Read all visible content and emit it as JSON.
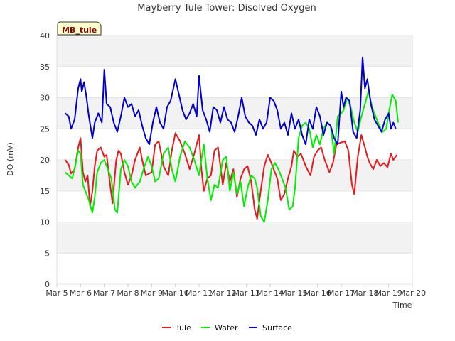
{
  "chart_data": {
    "type": "line",
    "title": "Mayberry Tule Tower: Disolved Oxygen",
    "xlabel": "Time",
    "ylabel": "DO (mV)",
    "badge": "MB_tule",
    "ylim": [
      0,
      40
    ],
    "yticks": [
      0,
      5,
      10,
      15,
      20,
      25,
      30,
      35,
      40
    ],
    "xlim": [
      5,
      20
    ],
    "xticks": [
      {
        "v": 5,
        "label": "Mar 5"
      },
      {
        "v": 6,
        "label": "Mar 6"
      },
      {
        "v": 7,
        "label": "Mar 7"
      },
      {
        "v": 8,
        "label": "Mar 8"
      },
      {
        "v": 9,
        "label": "Mar 9"
      },
      {
        "v": 10,
        "label": "Mar 10"
      },
      {
        "v": 11,
        "label": "Mar 11"
      },
      {
        "v": 12,
        "label": "Mar 12"
      },
      {
        "v": 13,
        "label": "Mar 13"
      },
      {
        "v": 14,
        "label": "Mar 14"
      },
      {
        "v": 15,
        "label": "Mar 15"
      },
      {
        "v": 16,
        "label": "Mar 16"
      },
      {
        "v": 17,
        "label": "Mar 17"
      },
      {
        "v": 18,
        "label": "Mar 18"
      },
      {
        "v": 19,
        "label": "Mar 19"
      },
      {
        "v": 20,
        "label": "Mar 20"
      }
    ],
    "grid": true,
    "legend_position": "bottom-center",
    "series": [
      {
        "name": "Tule",
        "color": "#e41a1c",
        "x": [
          5.35,
          5.5,
          5.6,
          5.75,
          5.9,
          6.0,
          6.1,
          6.2,
          6.3,
          6.4,
          6.5,
          6.6,
          6.7,
          6.85,
          7.0,
          7.1,
          7.2,
          7.35,
          7.5,
          7.6,
          7.7,
          7.85,
          8.0,
          8.15,
          8.3,
          8.5,
          8.6,
          8.75,
          9.0,
          9.15,
          9.3,
          9.5,
          9.7,
          9.85,
          10.0,
          10.2,
          10.4,
          10.6,
          10.8,
          11.0,
          11.1,
          11.2,
          11.35,
          11.5,
          11.65,
          11.8,
          12.0,
          12.15,
          12.3,
          12.45,
          12.6,
          12.75,
          12.9,
          13.05,
          13.2,
          13.35,
          13.45,
          13.6,
          13.75,
          13.9,
          14.0,
          14.15,
          14.3,
          14.45,
          14.6,
          14.75,
          14.9,
          15.0,
          15.15,
          15.3,
          15.5,
          15.7,
          15.85,
          16.0,
          16.15,
          16.3,
          16.5,
          16.65,
          16.8,
          17.0,
          17.15,
          17.3,
          17.45,
          17.55,
          17.7,
          17.85,
          18.0,
          18.1,
          18.2,
          18.35,
          18.5,
          18.65,
          18.8,
          18.95,
          19.1,
          19.2,
          19.35
        ],
        "values": [
          20.0,
          19.2,
          17.8,
          18.5,
          22.0,
          23.5,
          18.0,
          16.5,
          17.5,
          12.5,
          15.0,
          19.0,
          21.5,
          22.0,
          20.5,
          20.8,
          17.5,
          13.0,
          19.8,
          21.5,
          21.0,
          18.0,
          16.0,
          17.5,
          20.0,
          22.0,
          20.0,
          17.5,
          18.0,
          22.5,
          23.0,
          19.0,
          17.5,
          21.5,
          24.3,
          23.0,
          21.0,
          18.5,
          21.0,
          24.0,
          18.5,
          15.0,
          17.0,
          17.5,
          21.5,
          22.0,
          16.0,
          19.5,
          16.5,
          18.5,
          14.0,
          17.0,
          18.5,
          19.0,
          16.5,
          12.0,
          10.5,
          15.0,
          19.0,
          20.8,
          20.0,
          18.5,
          17.0,
          13.5,
          14.5,
          17.0,
          19.0,
          21.5,
          20.5,
          21.0,
          19.0,
          17.5,
          20.5,
          21.5,
          22.0,
          20.0,
          18.0,
          19.5,
          22.5,
          22.8,
          23.0,
          21.5,
          16.0,
          14.5,
          20.5,
          24.0,
          22.0,
          20.5,
          19.5,
          18.5,
          20.0,
          19.0,
          19.5,
          18.8,
          21.0,
          20.0,
          20.8
        ]
      },
      {
        "name": "Water",
        "color": "#00ee00",
        "x": [
          5.35,
          5.5,
          5.65,
          5.8,
          5.9,
          6.0,
          6.1,
          6.2,
          6.35,
          6.5,
          6.6,
          6.7,
          6.85,
          7.0,
          7.15,
          7.3,
          7.45,
          7.55,
          7.7,
          7.85,
          8.0,
          8.15,
          8.3,
          8.5,
          8.7,
          8.85,
          9.0,
          9.15,
          9.3,
          9.5,
          9.7,
          9.85,
          10.0,
          10.2,
          10.4,
          10.6,
          10.8,
          11.0,
          11.1,
          11.2,
          11.35,
          11.5,
          11.65,
          11.8,
          12.0,
          12.15,
          12.3,
          12.45,
          12.6,
          12.75,
          12.9,
          13.05,
          13.2,
          13.35,
          13.45,
          13.6,
          13.75,
          13.9,
          14.05,
          14.2,
          14.35,
          14.5,
          14.65,
          14.8,
          14.95,
          15.05,
          15.2,
          15.35,
          15.5,
          15.65,
          15.8,
          15.95,
          16.1,
          16.25,
          16.4,
          16.55,
          16.7,
          16.85,
          17.0,
          17.1,
          17.25,
          17.4,
          17.55,
          17.7,
          17.85,
          18.0,
          18.15,
          18.3,
          18.45,
          18.6,
          18.75,
          18.9,
          19.0,
          19.15,
          19.3,
          19.4
        ],
        "values": [
          18.0,
          17.5,
          17.0,
          19.5,
          21.5,
          21.0,
          16.0,
          15.0,
          13.5,
          11.5,
          14.0,
          18.0,
          19.5,
          20.0,
          18.5,
          17.0,
          12.0,
          11.5,
          18.5,
          20.0,
          19.0,
          16.5,
          15.5,
          16.5,
          19.0,
          20.5,
          19.0,
          16.5,
          17.0,
          21.0,
          22.0,
          18.5,
          16.5,
          20.5,
          23.0,
          22.0,
          20.0,
          17.5,
          20.0,
          22.5,
          17.0,
          13.5,
          16.0,
          15.5,
          20.0,
          20.5,
          15.0,
          18.0,
          14.5,
          16.5,
          12.5,
          15.5,
          17.5,
          17.0,
          15.5,
          11.0,
          10.0,
          13.5,
          18.5,
          19.5,
          18.5,
          17.0,
          15.5,
          12.0,
          12.5,
          15.5,
          23.5,
          25.5,
          26.0,
          25.0,
          22.0,
          24.0,
          22.5,
          25.0,
          26.0,
          25.5,
          21.0,
          27.0,
          27.5,
          28.0,
          30.0,
          28.5,
          26.0,
          24.5,
          27.0,
          29.0,
          31.0,
          28.5,
          27.0,
          25.5,
          24.5,
          25.0,
          27.5,
          30.5,
          29.5,
          26.0
        ]
      },
      {
        "name": "Surface",
        "color": "#0000cc",
        "x": [
          5.35,
          5.5,
          5.6,
          5.75,
          5.9,
          6.0,
          6.05,
          6.15,
          6.25,
          6.35,
          6.5,
          6.6,
          6.75,
          6.9,
          7.0,
          7.1,
          7.25,
          7.4,
          7.55,
          7.7,
          7.85,
          8.0,
          8.15,
          8.3,
          8.45,
          8.6,
          8.75,
          8.9,
          9.05,
          9.2,
          9.35,
          9.5,
          9.65,
          9.8,
          10.0,
          10.15,
          10.3,
          10.45,
          10.6,
          10.75,
          10.9,
          11.0,
          11.15,
          11.3,
          11.45,
          11.6,
          11.75,
          11.9,
          12.05,
          12.2,
          12.35,
          12.5,
          12.65,
          12.8,
          12.95,
          13.1,
          13.25,
          13.4,
          13.55,
          13.7,
          13.85,
          14.0,
          14.15,
          14.3,
          14.45,
          14.6,
          14.75,
          14.9,
          15.05,
          15.2,
          15.35,
          15.5,
          15.65,
          15.8,
          15.95,
          16.1,
          16.25,
          16.4,
          16.55,
          16.7,
          16.85,
          17.0,
          17.1,
          17.2,
          17.35,
          17.5,
          17.65,
          17.8,
          17.9,
          18.0,
          18.1,
          18.25,
          18.4,
          18.55,
          18.7,
          18.85,
          19.0,
          19.1,
          19.2,
          19.3
        ],
        "values": [
          27.5,
          27.0,
          25.0,
          26.5,
          31.5,
          33.0,
          31.0,
          32.5,
          30.0,
          27.0,
          23.5,
          26.0,
          27.5,
          26.0,
          34.5,
          29.0,
          28.5,
          26.0,
          24.5,
          27.0,
          30.0,
          28.5,
          29.0,
          27.0,
          28.0,
          25.5,
          23.5,
          22.5,
          26.0,
          28.5,
          26.0,
          25.0,
          28.5,
          29.5,
          33.0,
          30.5,
          28.0,
          26.5,
          27.5,
          29.0,
          27.0,
          33.5,
          28.0,
          26.5,
          24.5,
          28.5,
          28.0,
          26.0,
          28.5,
          26.5,
          26.0,
          24.5,
          27.0,
          30.0,
          27.0,
          26.0,
          25.5,
          24.0,
          26.5,
          25.0,
          26.0,
          30.0,
          29.5,
          28.0,
          25.0,
          26.0,
          24.0,
          27.5,
          25.0,
          26.5,
          24.0,
          22.5,
          26.5,
          25.0,
          28.5,
          27.0,
          24.0,
          26.0,
          25.5,
          23.5,
          22.5,
          31.0,
          28.5,
          30.0,
          29.5,
          24.5,
          23.5,
          28.0,
          36.5,
          31.5,
          33.0,
          29.0,
          26.5,
          25.5,
          24.5,
          26.5,
          27.5,
          25.0,
          26.0,
          25.0
        ]
      }
    ]
  }
}
